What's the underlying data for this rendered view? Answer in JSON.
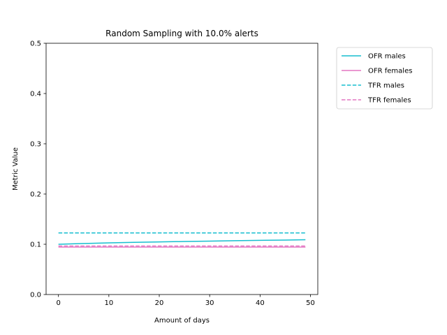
{
  "chart_data": {
    "type": "line",
    "title": "Random Sampling with 10.0% alerts",
    "xlabel": "Amount of days",
    "ylabel": "Metric Value",
    "xlim": [
      -2.45,
      51.45
    ],
    "ylim": [
      0,
      0.5
    ],
    "xticks": [
      0,
      10,
      20,
      30,
      40,
      50
    ],
    "yticks": [
      0.0,
      0.1,
      0.2,
      0.3,
      0.4,
      0.5
    ],
    "xtick_labels": [
      "0",
      "10",
      "20",
      "30",
      "40",
      "50"
    ],
    "ytick_labels": [
      "0.0",
      "0.1",
      "0.2",
      "0.3",
      "0.4",
      "0.5"
    ],
    "grid": false,
    "legend_position": "outside-top-right",
    "x": [
      0,
      5,
      10,
      15,
      20,
      25,
      30,
      35,
      40,
      45,
      49
    ],
    "series": [
      {
        "name": "OFR males",
        "color": "#17becf",
        "dash": "solid",
        "values": [
          0.1,
          0.1015,
          0.1028,
          0.1038,
          0.1047,
          0.1055,
          0.1063,
          0.1071,
          0.1078,
          0.1084,
          0.109
        ]
      },
      {
        "name": "OFR females",
        "color": "#e377c2",
        "dash": "solid",
        "values": [
          0.0945,
          0.0945,
          0.0945,
          0.0945,
          0.0945,
          0.0945,
          0.0945,
          0.0945,
          0.0945,
          0.0945,
          0.0945
        ]
      },
      {
        "name": "TFR males",
        "color": "#17becf",
        "dash": "dashed",
        "values": [
          0.1225,
          0.1225,
          0.1225,
          0.1225,
          0.1225,
          0.1225,
          0.1225,
          0.1225,
          0.1225,
          0.1225,
          0.1225
        ]
      },
      {
        "name": "TFR females",
        "color": "#e377c2",
        "dash": "dashed",
        "values": [
          0.0965,
          0.0965,
          0.0965,
          0.0965,
          0.0965,
          0.0965,
          0.0965,
          0.0965,
          0.0965,
          0.0965,
          0.0965
        ]
      }
    ]
  }
}
